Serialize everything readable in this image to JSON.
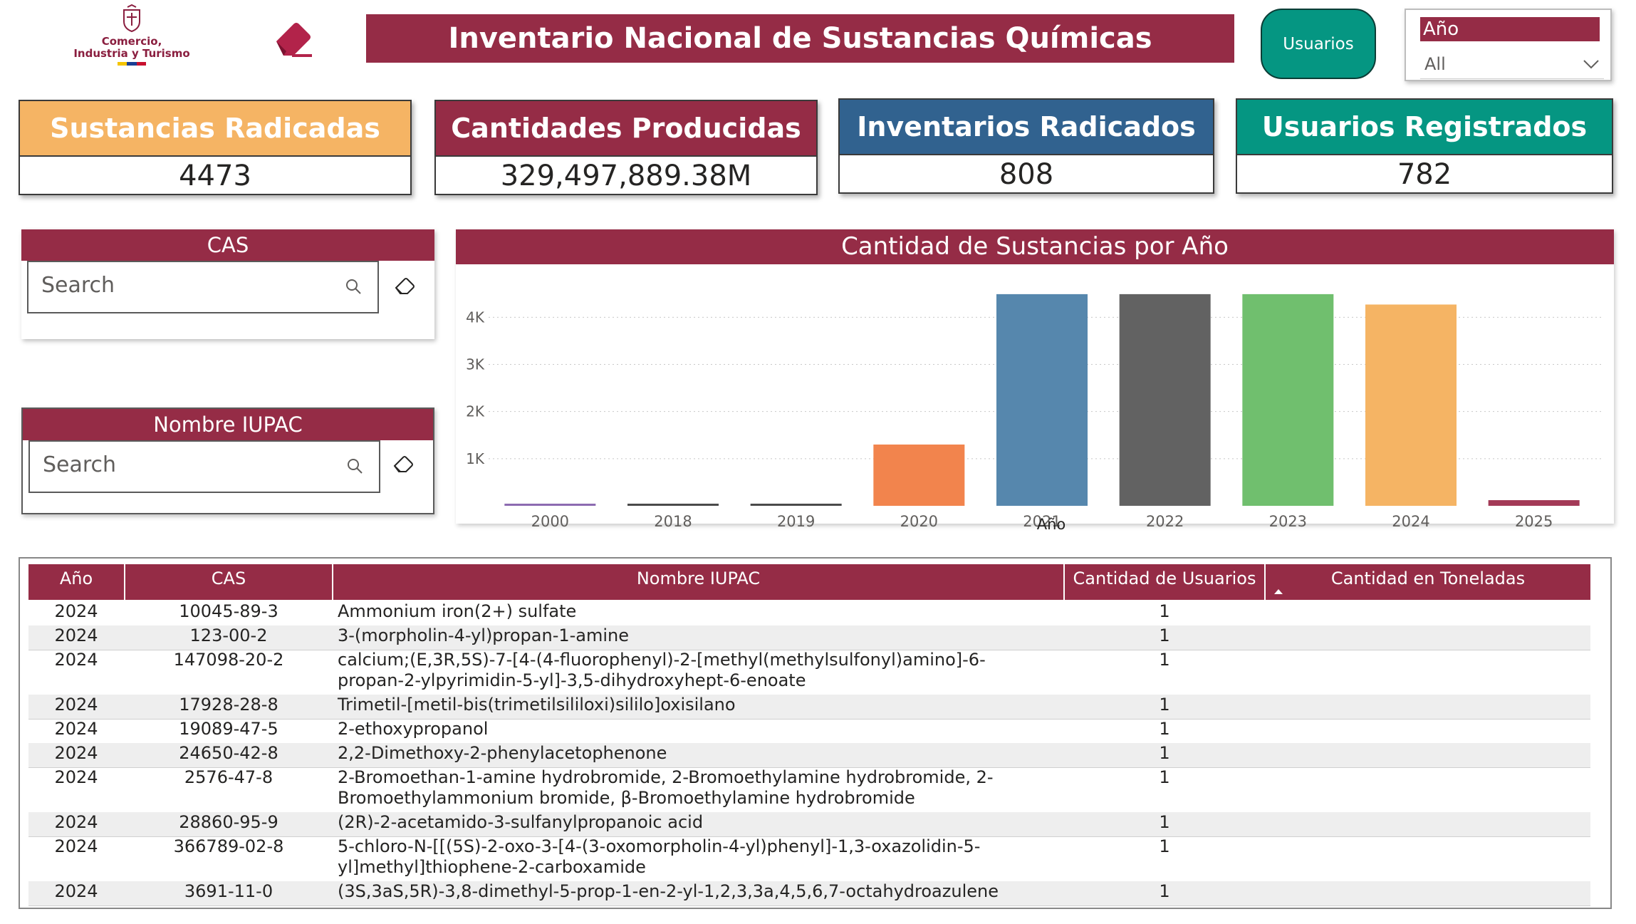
{
  "header": {
    "logo_line1": "Comercio,",
    "logo_line2": "Industria y Turismo",
    "title": "Inventario Nacional de Sustancias Químicas",
    "usuarios_button": "Usuarios",
    "anio_slicer": {
      "label": "Año",
      "value": "All"
    }
  },
  "kpis": [
    {
      "label": "Sustancias Radicadas",
      "value": "4473",
      "color": "#f5b464"
    },
    {
      "label": "Cantidades Producidas",
      "value": "329,497,889.38M",
      "color": "#952c46"
    },
    {
      "label": "Inventarios Radicados",
      "value": "808",
      "color": "#31628f"
    },
    {
      "label": "Usuarios Registrados",
      "value": "782",
      "color": "#059682"
    }
  ],
  "filters": {
    "cas": {
      "label": "CAS",
      "placeholder": "Search"
    },
    "iupac": {
      "label": "Nombre IUPAC",
      "placeholder": "Search"
    }
  },
  "chart_data": {
    "type": "bar",
    "title": "Cantidad de Sustancias por Año",
    "xlabel": "Año",
    "ylabel": "",
    "categories": [
      "2000",
      "2018",
      "2019",
      "2020",
      "2021",
      "2022",
      "2023",
      "2024",
      "2025"
    ],
    "values": [
      10,
      10,
      5,
      1300,
      4490,
      4490,
      4490,
      4270,
      120
    ],
    "colors": [
      "#8c6bb1",
      "#4a4a4a",
      "#4a4a4a",
      "#f2844d",
      "#5687ad",
      "#626262",
      "#70bf6e",
      "#f5b464",
      "#a33a57"
    ],
    "yticks": [
      1000,
      2000,
      3000,
      4000
    ],
    "ytick_labels": [
      "1K",
      "2K",
      "3K",
      "4K"
    ],
    "ylim": [
      0,
      4700
    ],
    "grid": true
  },
  "table": {
    "columns": [
      "Año",
      "CAS",
      "Nombre IUPAC",
      "Cantidad de Usuarios",
      "Cantidad en Toneladas"
    ],
    "rows": [
      {
        "anio": "2024",
        "cas": "10045-89-3",
        "nombre": [
          "Ammonium iron(2+) sulfate"
        ],
        "usuarios": "1",
        "toneladas": ""
      },
      {
        "anio": "2024",
        "cas": "123-00-2",
        "nombre": [
          "3-(morpholin-4-yl)propan-1-amine"
        ],
        "usuarios": "1",
        "toneladas": ""
      },
      {
        "anio": "2024",
        "cas": "147098-20-2",
        "nombre": [
          "calcium;(E,3R,5S)-7-[4-(4-fluorophenyl)-2-[methyl(methylsulfonyl)amino]-6-",
          "propan-2-ylpyrimidin-5-yl]-3,5-dihydroxyhept-6-enoate"
        ],
        "usuarios": "1",
        "toneladas": ""
      },
      {
        "anio": "2024",
        "cas": "17928-28-8",
        "nombre": [
          "Trimetil-[metil-bis(trimetilsililoxi)sililo]oxisilano"
        ],
        "usuarios": "1",
        "toneladas": ""
      },
      {
        "anio": "2024",
        "cas": "19089-47-5",
        "nombre": [
          "2-ethoxypropanol"
        ],
        "usuarios": "1",
        "toneladas": ""
      },
      {
        "anio": "2024",
        "cas": "24650-42-8",
        "nombre": [
          "2,2-Dimethoxy-2-phenylacetophenone"
        ],
        "usuarios": "1",
        "toneladas": ""
      },
      {
        "anio": "2024",
        "cas": "2576-47-8",
        "nombre": [
          "2-Bromoethan-1-amine hydrobromide, 2-Bromoethylamine hydrobromide, 2-",
          "Bromoethylammonium bromide, β-Bromoethylamine hydrobromide"
        ],
        "usuarios": "1",
        "toneladas": ""
      },
      {
        "anio": "2024",
        "cas": "28860-95-9",
        "nombre": [
          "(2R)-2-acetamido-3-sulfanylpropanoic acid"
        ],
        "usuarios": "1",
        "toneladas": ""
      },
      {
        "anio": "2024",
        "cas": "366789-02-8",
        "nombre": [
          "5-chloro-N-[[(5S)-2-oxo-3-[4-(3-oxomorpholin-4-yl)phenyl]-1,3-oxazolidin-5-",
          "yl]methyl]thiophene-2-carboxamide"
        ],
        "usuarios": "1",
        "toneladas": ""
      },
      {
        "anio": "2024",
        "cas": "3691-11-0",
        "nombre": [
          "(3S,3aS,5R)-3,8-dimethyl-5-prop-1-en-2-yl-1,2,3,3a,4,5,6,7-octahydroazulene"
        ],
        "usuarios": "1",
        "toneladas": ""
      }
    ]
  }
}
